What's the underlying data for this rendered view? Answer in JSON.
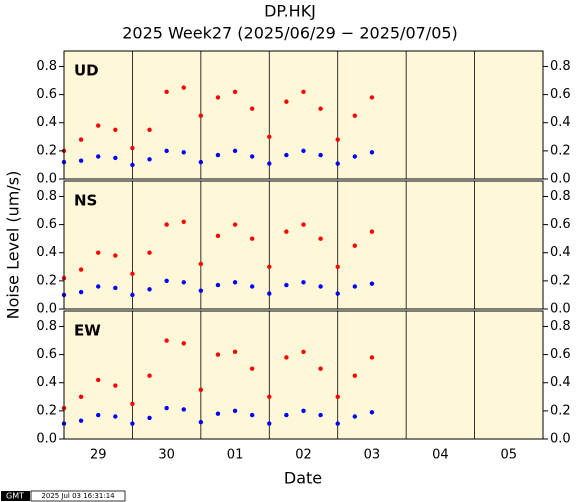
{
  "chart_data": [
    {
      "type": "scatter",
      "title": "DP.HKJ",
      "subtitle": "2025 Week27 (2025/06/29 − 2025/07/05)",
      "ylabel": "Noise Level (um/s)",
      "label": "UD",
      "x": [
        0,
        0.25,
        0.5,
        0.75,
        1,
        1.25,
        1.5,
        1.75,
        2,
        2.25,
        2.5,
        2.75,
        3,
        3.25,
        3.5,
        3.75,
        4,
        4.25,
        4.5
      ],
      "series": [
        {
          "color": "#ff0000",
          "values": [
            0.2,
            0.28,
            0.38,
            0.35,
            0.22,
            0.35,
            0.62,
            0.65,
            0.45,
            0.58,
            0.62,
            0.5,
            0.3,
            0.55,
            0.62,
            0.5,
            0.28,
            0.45,
            0.58
          ]
        },
        {
          "color": "#0000ff",
          "values": [
            0.12,
            0.13,
            0.16,
            0.15,
            0.1,
            0.14,
            0.2,
            0.19,
            0.12,
            0.17,
            0.2,
            0.16,
            0.11,
            0.17,
            0.2,
            0.17,
            0.11,
            0.16,
            0.19
          ]
        }
      ],
      "xlim": [
        0,
        7
      ],
      "vlines": [
        1,
        2,
        3,
        4,
        5,
        6
      ],
      "ylim": [
        0,
        0.91
      ],
      "yticks": [
        {
          "value": 0,
          "label": "0.0"
        },
        0.2,
        0.4,
        0.6,
        0.8
      ]
    },
    {
      "type": "scatter",
      "label": "NS",
      "x": [
        0,
        0.25,
        0.5,
        0.75,
        1,
        1.25,
        1.5,
        1.75,
        2,
        2.25,
        2.5,
        2.75,
        3,
        3.25,
        3.5,
        3.75,
        4,
        4.25,
        4.5
      ],
      "series": [
        {
          "color": "#ff0000",
          "values": [
            0.22,
            0.28,
            0.4,
            0.38,
            0.25,
            0.4,
            0.6,
            0.62,
            0.32,
            0.52,
            0.6,
            0.5,
            0.3,
            0.55,
            0.6,
            0.5,
            0.3,
            0.45,
            0.55
          ]
        },
        {
          "color": "#0000ff",
          "values": [
            0.1,
            0.12,
            0.16,
            0.15,
            0.1,
            0.14,
            0.2,
            0.19,
            0.13,
            0.17,
            0.19,
            0.16,
            0.11,
            0.17,
            0.19,
            0.16,
            0.11,
            0.16,
            0.18
          ]
        }
      ],
      "xlim": [
        0,
        7
      ],
      "vlines": [
        1,
        2,
        3,
        4,
        5,
        6
      ],
      "ylim": [
        0,
        0.91
      ],
      "yticks": [
        {
          "value": 0,
          "label": "0.0"
        },
        0.2,
        0.4,
        0.6,
        0.8
      ]
    },
    {
      "type": "scatter",
      "label": "EW",
      "xlabel": "Date",
      "x": [
        0,
        0.25,
        0.5,
        0.75,
        1,
        1.25,
        1.5,
        1.75,
        2,
        2.25,
        2.5,
        2.75,
        3,
        3.25,
        3.5,
        3.75,
        4,
        4.25,
        4.5
      ],
      "series": [
        {
          "color": "#ff0000",
          "values": [
            0.22,
            0.3,
            0.42,
            0.38,
            0.25,
            0.45,
            0.7,
            0.68,
            0.35,
            0.6,
            0.62,
            0.5,
            0.3,
            0.58,
            0.62,
            0.5,
            0.3,
            0.45,
            0.58
          ]
        },
        {
          "color": "#0000ff",
          "values": [
            0.11,
            0.13,
            0.17,
            0.16,
            0.11,
            0.15,
            0.22,
            0.21,
            0.12,
            0.18,
            0.2,
            0.17,
            0.11,
            0.17,
            0.2,
            0.17,
            0.11,
            0.16,
            0.19
          ]
        }
      ],
      "xlim": [
        0,
        7
      ],
      "vlines": [
        1,
        2,
        3,
        4,
        5,
        6
      ],
      "ylim": [
        0,
        0.91
      ],
      "yticks": [
        {
          "value": 0,
          "label": "0.0"
        },
        0.2,
        0.4,
        0.6,
        0.8
      ],
      "xticks": [
        {
          "value": 0.5,
          "label": "29"
        },
        {
          "value": 1.5,
          "label": "30"
        },
        {
          "value": 2.5,
          "label": "01"
        },
        {
          "value": 3.5,
          "label": "02"
        },
        {
          "value": 4.5,
          "label": "03"
        },
        {
          "value": 5.5,
          "label": "04"
        },
        {
          "value": 6.5,
          "label": "05"
        }
      ]
    }
  ],
  "footer": {
    "logo": "GMT",
    "timestamp": "2025 Jul 03 16:31:14"
  }
}
